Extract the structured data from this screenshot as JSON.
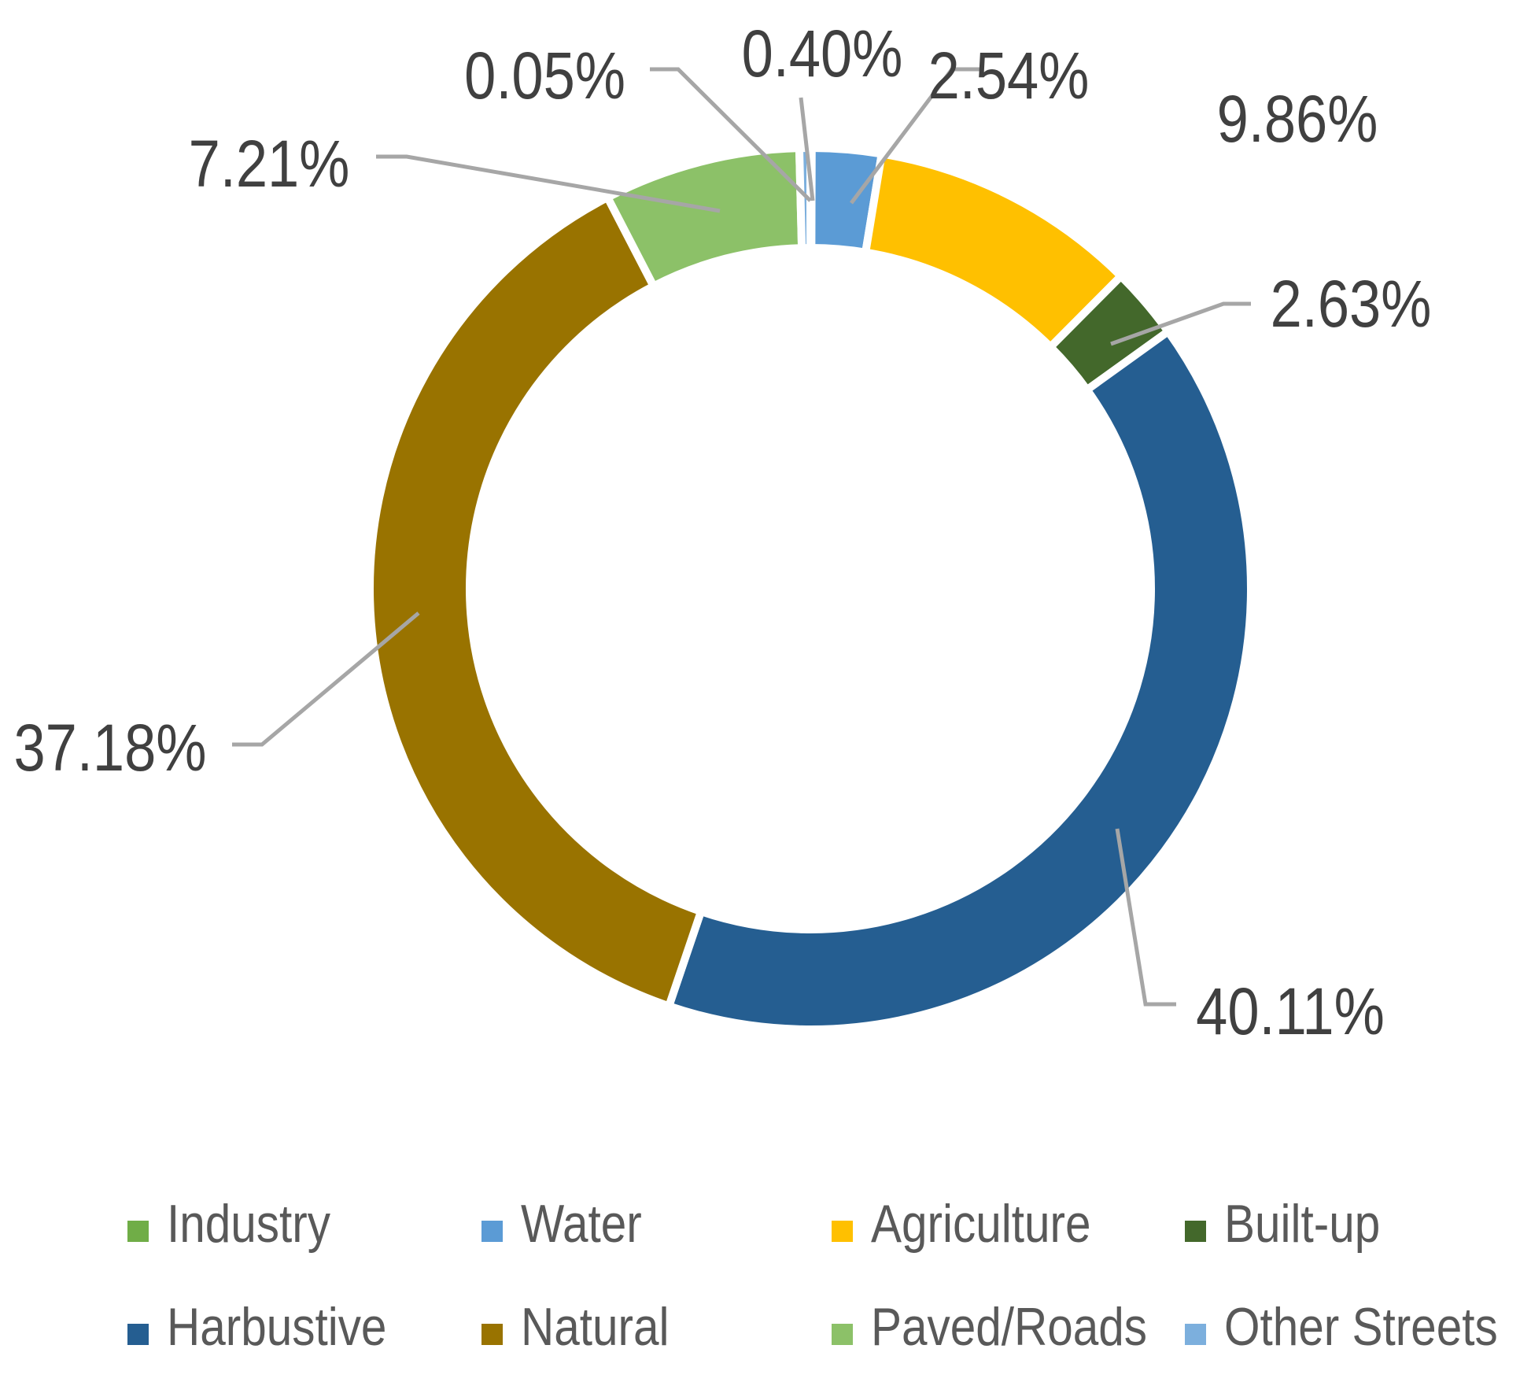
{
  "chart_data": {
    "type": "pie",
    "variant": "doughnut",
    "title": "",
    "slices": [
      {
        "name": "Industry",
        "value": 0.05,
        "label": "0.05%",
        "color": "#70ad47"
      },
      {
        "name": "Water",
        "value": 2.54,
        "label": "2.54%",
        "color": "#5b9bd5"
      },
      {
        "name": "Agriculture",
        "value": 9.86,
        "label": "9.86%",
        "color": "#ffc000"
      },
      {
        "name": "Built-up",
        "value": 2.63,
        "label": "2.63%",
        "color": "#43682b"
      },
      {
        "name": "Harbustive",
        "value": 40.11,
        "label": "40.11%",
        "color": "#255e91"
      },
      {
        "name": "Natural",
        "value": 37.18,
        "label": "37.18%",
        "color": "#997300"
      },
      {
        "name": "Paved/Roads",
        "value": 7.21,
        "label": "7.21%",
        "color": "#8cc168"
      },
      {
        "name": "Other Streets",
        "value": 0.4,
        "label": "0.40%",
        "color": "#7cafdd"
      }
    ],
    "legend": {
      "position": "bottom"
    }
  }
}
